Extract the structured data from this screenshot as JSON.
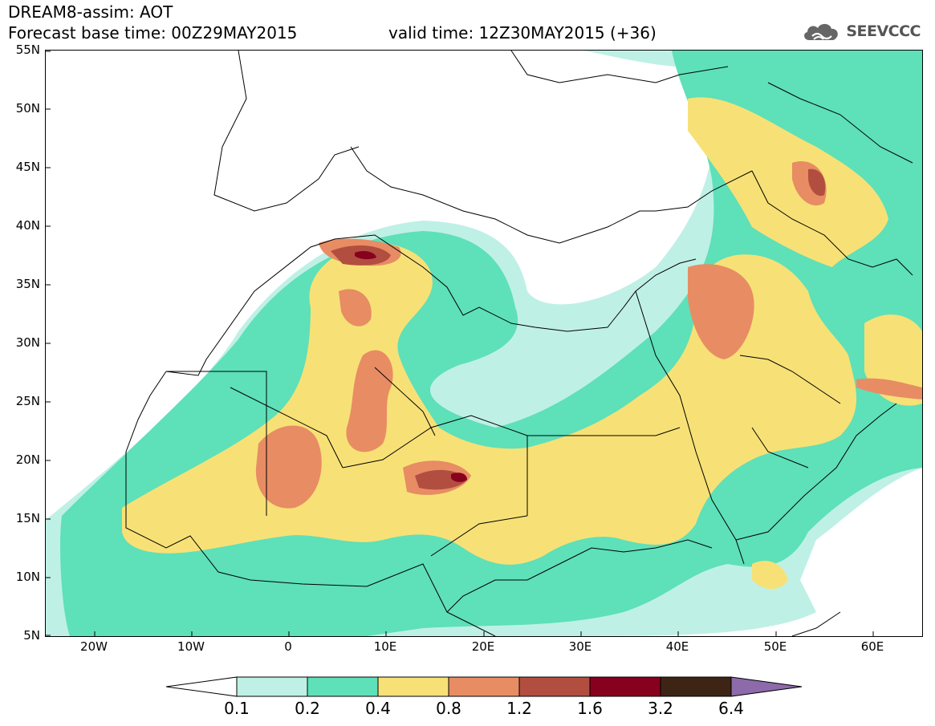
{
  "header": {
    "title": "DREAM8-assim: AOT",
    "base_time_label": "Forecast base time: 00Z29MAY2015",
    "valid_time_label": "valid time: 12Z30MAY2015 (+36)"
  },
  "logo": {
    "text": "SEEVCCC",
    "icon": "cloud-icon"
  },
  "map": {
    "variable": "AOT",
    "lon_range": [
      -25,
      65
    ],
    "lat_range": [
      5,
      55
    ],
    "lat_labels": [
      "55N",
      "50N",
      "45N",
      "40N",
      "35N",
      "30N",
      "25N",
      "20N",
      "15N",
      "10N",
      "5N"
    ],
    "lon_labels": [
      "20W",
      "10W",
      "0",
      "10E",
      "20E",
      "30E",
      "40E",
      "50E",
      "60E"
    ]
  },
  "colorbar": {
    "levels": [
      "0.1",
      "0.2",
      "0.4",
      "0.8",
      "1.2",
      "1.6",
      "3.2",
      "6.4"
    ],
    "colors": [
      "#ffffff",
      "#bff0e6",
      "#5ee0b9",
      "#f7e176",
      "#e88c64",
      "#b24e40",
      "#87001e",
      "#3d2415",
      "#8d6aaa"
    ]
  }
}
